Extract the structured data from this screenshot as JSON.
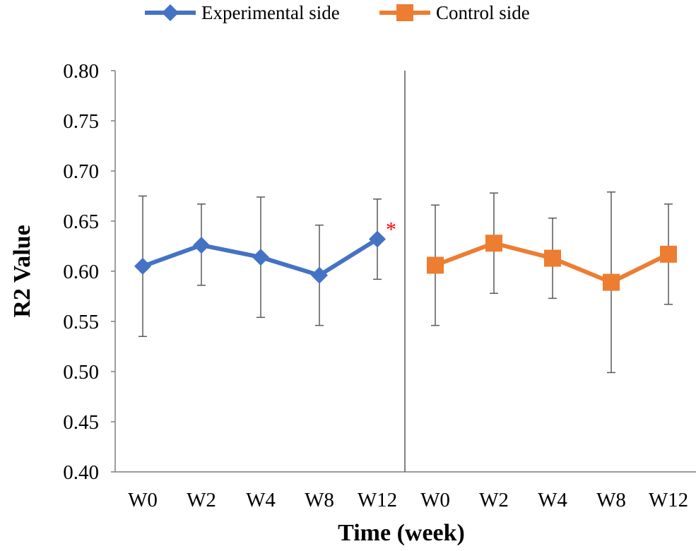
{
  "chart_data": {
    "type": "line",
    "xlabel": "Time (week)",
    "ylabel": "R2 Value",
    "ylim": [
      0.4,
      0.8
    ],
    "yticks": [
      "0.40",
      "0.45",
      "0.50",
      "0.55",
      "0.60",
      "0.65",
      "0.70",
      "0.75",
      "0.80"
    ],
    "categories": [
      "W0",
      "W2",
      "W4",
      "W8",
      "W12"
    ],
    "grid": false,
    "legend_position": "top",
    "series": [
      {
        "name": "Experimental side",
        "color": "#4472C4",
        "marker": "diamond",
        "values": [
          0.605,
          0.626,
          0.614,
          0.596,
          0.632
        ],
        "error_low": [
          0.535,
          0.586,
          0.554,
          0.546,
          0.592
        ],
        "error_high": [
          0.675,
          0.667,
          0.674,
          0.646,
          0.672
        ],
        "annotations": [
          {
            "category": "W12",
            "text": "*",
            "color": "#FF0000"
          }
        ]
      },
      {
        "name": "Control side",
        "color": "#ED7D31",
        "marker": "square",
        "values": [
          0.606,
          0.628,
          0.613,
          0.589,
          0.617
        ],
        "error_low": [
          0.546,
          0.578,
          0.573,
          0.499,
          0.567
        ],
        "error_high": [
          0.666,
          0.678,
          0.653,
          0.679,
          0.667
        ]
      }
    ]
  }
}
